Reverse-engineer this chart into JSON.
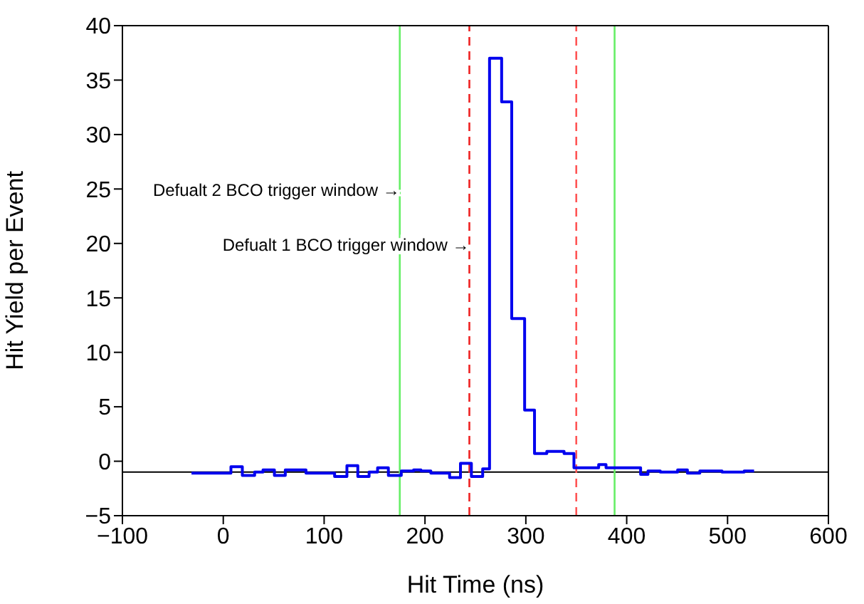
{
  "chart_data": {
    "type": "step",
    "xlabel": "Hit Time (ns)",
    "ylabel": "Hit Yield per Event",
    "x": [
      -31.5,
      7.6,
      18.9,
      31.1,
      39.4,
      50.7,
      61.5,
      82,
      110.4,
      122.6,
      133.4,
      144.6,
      153,
      163.7,
      176.5,
      188.7,
      196,
      205.8,
      224.4,
      235.2,
      246,
      257.2,
      264,
      276,
      286,
      298.8,
      308.6,
      320.8,
      337.9,
      347.7,
      372.2,
      379.5,
      413.8,
      421.1,
      433.3,
      450.5,
      460.2,
      472.5,
      484.7,
      494.5,
      516.5,
      526.3
    ],
    "series": [
      {
        "color": "#0000ee",
        "values": [
          -1.1,
          -0.5,
          -1.3,
          -1.0,
          -0.8,
          -1.3,
          -0.8,
          -1.1,
          -1.4,
          -0.4,
          -1.4,
          -1.0,
          -0.6,
          -1.3,
          -0.9,
          -0.8,
          -0.9,
          -1.1,
          -1.5,
          -0.2,
          -1.4,
          -0.7,
          37,
          33,
          13.1,
          4.7,
          0.7,
          0.9,
          0.7,
          -0.6,
          -0.3,
          -0.6,
          -1.2,
          -0.9,
          -1.0,
          -0.8,
          -1.1,
          -0.9,
          -0.9,
          -1.0,
          -0.9,
          -0.9
        ]
      }
    ],
    "xlim": [
      -100,
      600
    ],
    "xticks": [
      {
        "value": -100,
        "label": "−100"
      },
      0,
      100,
      200,
      300,
      400,
      500,
      600
    ],
    "ylim": [
      -5,
      40
    ],
    "yticks": [
      {
        "value": -5,
        "label": "−5"
      },
      0,
      5,
      10,
      15,
      20,
      25,
      30,
      35,
      40
    ],
    "grid": false,
    "legend": false,
    "marker": "none",
    "line_style": "solid",
    "ref_lines": [
      {
        "axis": "y",
        "value": -1,
        "color": "#000000",
        "line_style": "solid"
      },
      {
        "axis": "x",
        "value": 175,
        "color": "#66ee66",
        "line_style": "solid"
      },
      {
        "axis": "x",
        "value": 244,
        "color": "#ee2222",
        "line_style": "dashed"
      },
      {
        "axis": "x",
        "value": 350,
        "color": "#ff5555",
        "line_style": "dashed"
      },
      {
        "axis": "x",
        "value": 388,
        "color": "#66ee66",
        "line_style": "solid"
      }
    ],
    "annotations": [
      {
        "text": "Defualt 2 BCO trigger window →",
        "x": 175,
        "y": 25
      },
      {
        "text": "Defualt 1 BCO trigger window →",
        "x": 244,
        "y": 20
      }
    ]
  }
}
